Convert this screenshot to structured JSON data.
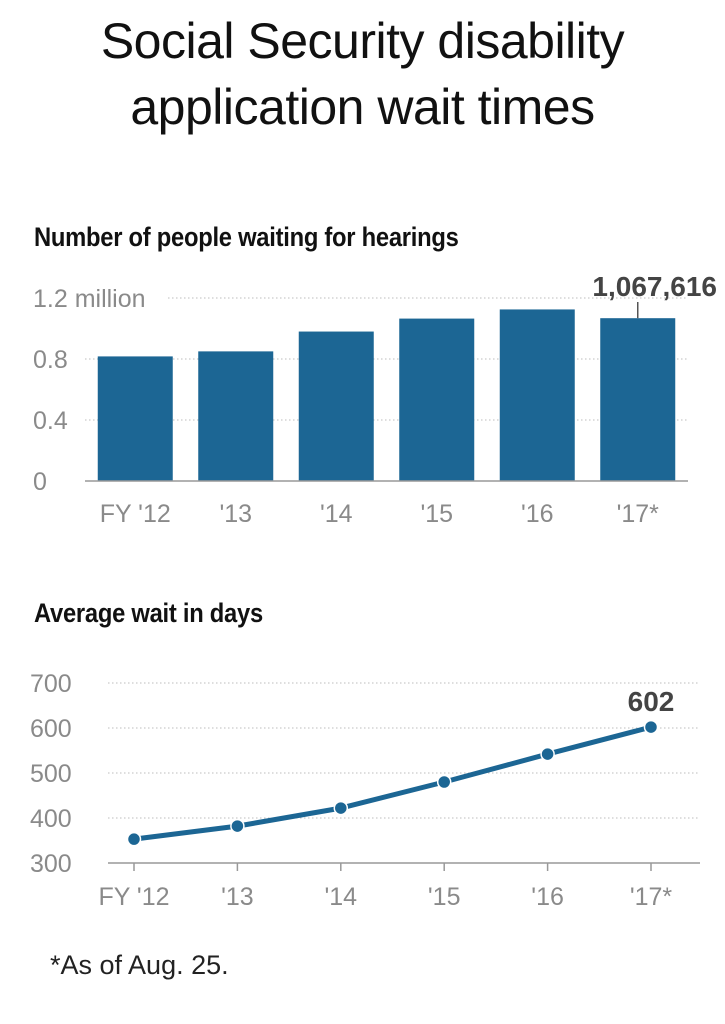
{
  "title": "Social Security disability application wait times",
  "footnote": "*As of Aug. 25.",
  "colors": {
    "bar": "#1c6694",
    "line": "#1c6694",
    "grid": "#bdbdbd",
    "tick": "#8a8a8a"
  },
  "chart_data": [
    {
      "type": "bar",
      "title": "Number of people waiting for hearings",
      "categories": [
        "FY '12",
        "'13",
        "'14",
        "'15",
        "'16",
        "'17*"
      ],
      "values": [
        817000,
        850000,
        980000,
        1065000,
        1125000,
        1067616
      ],
      "yticks": [
        0,
        0.4,
        0.8,
        1.2
      ],
      "ytick_labels": [
        "0",
        "0.4",
        "0.8",
        "1.2 million"
      ],
      "ylim": [
        0,
        1200000
      ],
      "annotation": {
        "index": 5,
        "label": "1,067,616"
      },
      "grid": true
    },
    {
      "type": "line",
      "title": "Average wait in days",
      "categories": [
        "FY '12",
        "'13",
        "'14",
        "'15",
        "'16",
        "'17*"
      ],
      "values": [
        353,
        382,
        422,
        480,
        542,
        602
      ],
      "yticks": [
        300,
        400,
        500,
        600,
        700
      ],
      "ytick_labels": [
        "300",
        "400",
        "500",
        "600",
        "700"
      ],
      "ylim": [
        300,
        700
      ],
      "annotation": {
        "index": 5,
        "label": "602"
      },
      "grid": true
    }
  ]
}
